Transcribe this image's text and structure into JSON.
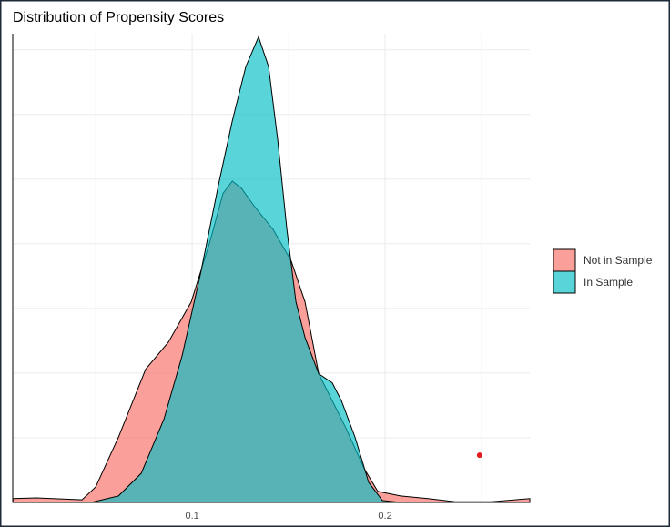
{
  "chart_data": {
    "type": "density",
    "title": "Distribution of Propensity Scores",
    "series": [
      {
        "name": "Not in Sample",
        "color": "#f8766d",
        "x": [
          0.0071,
          0.0193,
          0.0429,
          0.05,
          0.0618,
          0.0759,
          0.0877,
          0.0995,
          0.109,
          0.116,
          0.1208,
          0.1255,
          0.1325,
          0.142,
          0.1514,
          0.1585,
          0.1656,
          0.1703,
          0.1797,
          0.1892,
          0.1962,
          0.208,
          0.2222,
          0.2363,
          0.2552,
          0.275
        ],
        "values": [
          0.06,
          0.07,
          0.04,
          0.24,
          1.01,
          2.06,
          2.48,
          3.1,
          4.01,
          4.78,
          4.97,
          4.86,
          4.57,
          4.22,
          3.73,
          3.1,
          1.99,
          1.71,
          1.15,
          0.52,
          0.17,
          0.1,
          0.06,
          0.01,
          0.01,
          0.06
        ]
      },
      {
        "name": "In Sample",
        "color": "#00bfc4",
        "x": [
          0.0071,
          0.0476,
          0.0618,
          0.0736,
          0.0854,
          0.0948,
          0.1042,
          0.1137,
          0.1208,
          0.1278,
          0.1344,
          0.1396,
          0.1443,
          0.1491,
          0.1538,
          0.1585,
          0.1656,
          0.1726,
          0.1774,
          0.1844,
          0.1915,
          0.1986,
          0.208,
          0.275
        ],
        "values": [
          0,
          0,
          0.1,
          0.45,
          1.29,
          2.27,
          3.52,
          4.92,
          5.9,
          6.74,
          7.2,
          6.74,
          5.62,
          4.22,
          3.1,
          2.55,
          1.99,
          1.85,
          1.57,
          1.01,
          0.31,
          0.03,
          0,
          0
        ]
      }
    ],
    "marker": {
      "x": 0.249,
      "y": 0.73,
      "color": "#e31a1c"
    },
    "xlim": [
      0.007,
      0.275
    ],
    "xticks": [
      0.1,
      0.2
    ],
    "xminor": [
      0.05,
      0.15,
      0.25
    ],
    "ylim": [
      0,
      7.25
    ],
    "yticks": [
      0,
      1,
      2,
      3,
      4,
      5,
      6,
      7
    ],
    "show_ytick_labels": false,
    "grid": true,
    "legend": "right"
  }
}
